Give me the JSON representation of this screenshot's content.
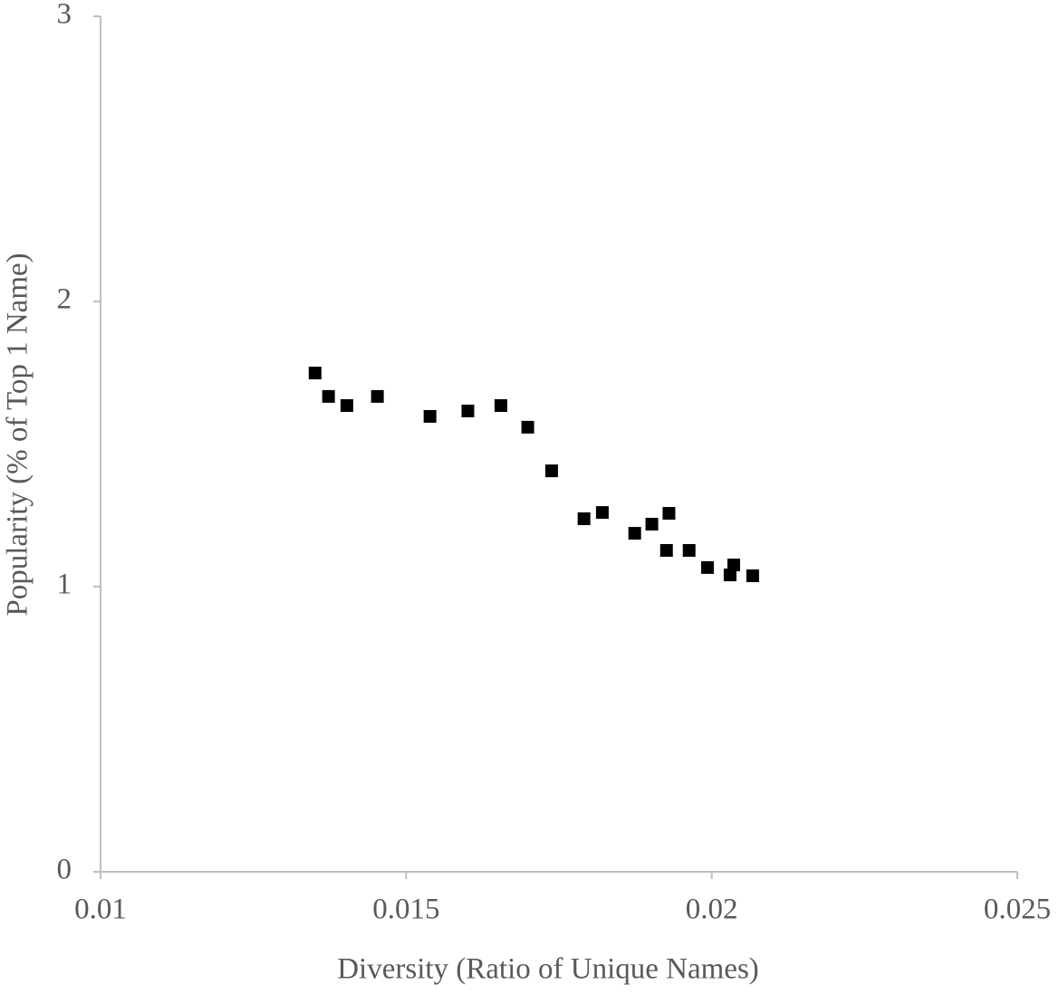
{
  "chart_data": {
    "type": "scatter",
    "x_label": "Diversity (Ratio of Unique Names)",
    "y_label": "Popularity (% of Top 1 Name)",
    "x": [
      0.01351,
      0.01373,
      0.01403,
      0.01453,
      0.01539,
      0.01601,
      0.01655,
      0.01699,
      0.01738,
      0.01791,
      0.01821,
      0.01874,
      0.01902,
      0.0193,
      0.01926,
      0.01963,
      0.01993,
      0.0203,
      0.02036,
      0.02067
    ],
    "values": [
      1.749,
      1.667,
      1.635,
      1.667,
      1.597,
      1.616,
      1.635,
      1.559,
      1.406,
      1.238,
      1.26,
      1.187,
      1.219,
      1.257,
      1.127,
      1.127,
      1.067,
      1.041,
      1.076,
      1.038
    ],
    "color": "#000000",
    "xlim": [
      0.01,
      0.025
    ],
    "xticks": [
      0.01,
      0.015,
      0.02,
      0.025
    ],
    "ylim": [
      0,
      3
    ],
    "yticks": [
      0,
      1,
      2,
      3
    ],
    "grid": false
  }
}
